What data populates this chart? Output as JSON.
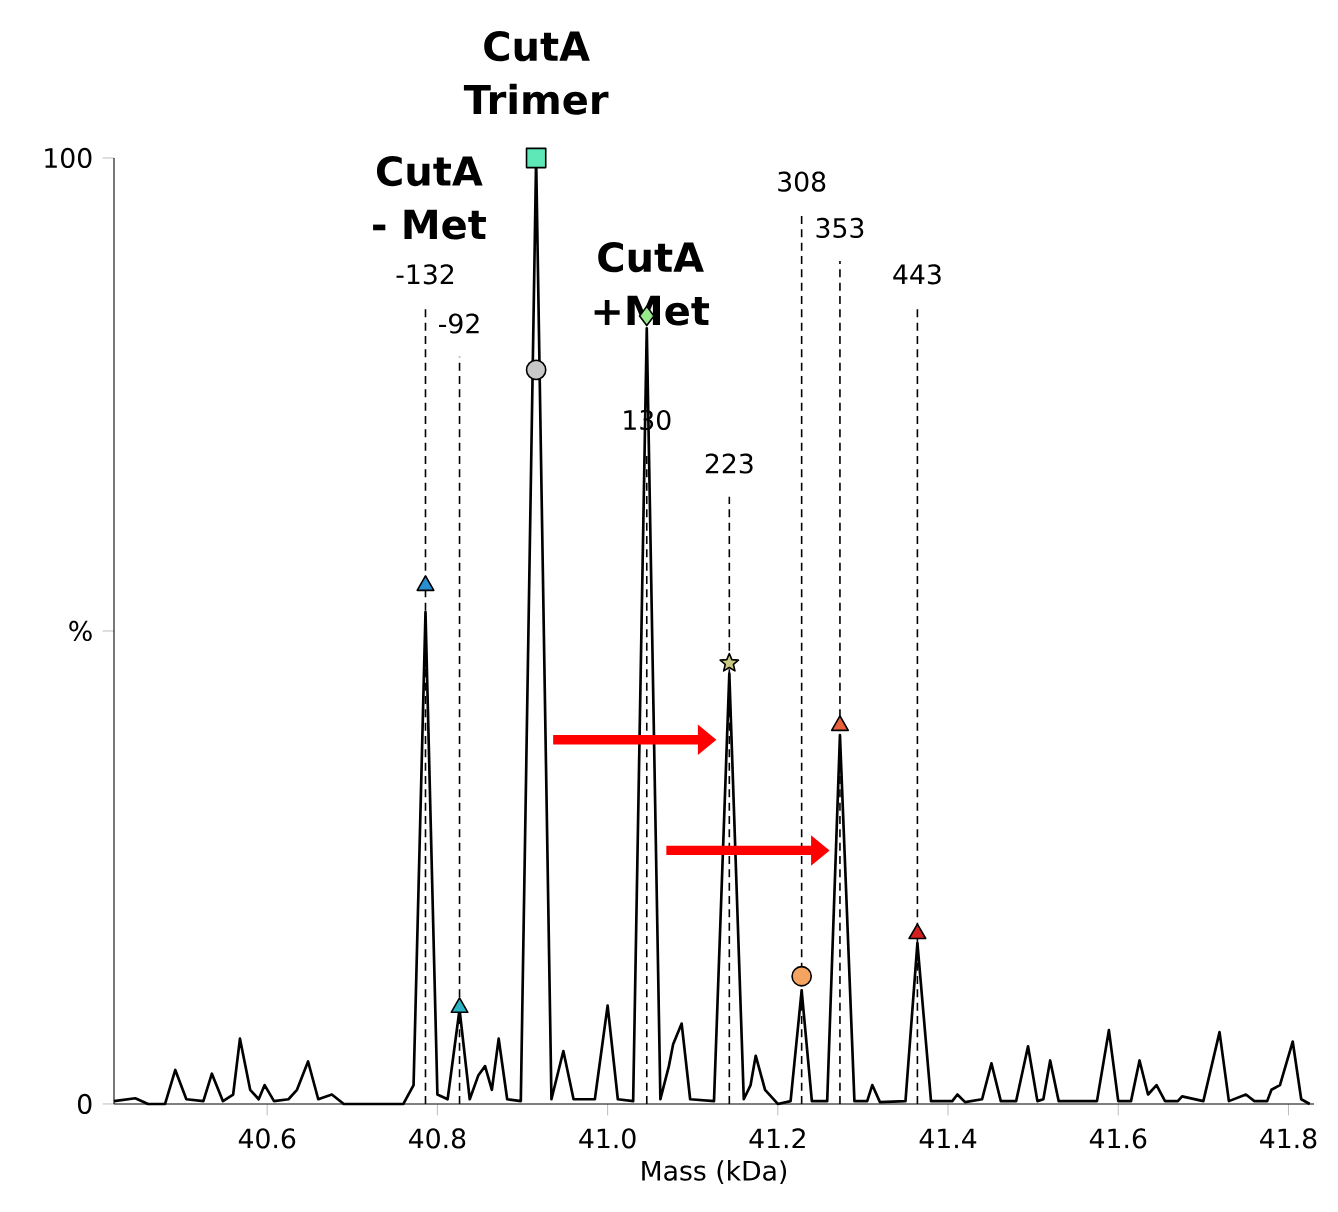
{
  "chart_data": {
    "type": "line",
    "xlabel": "Mass (kDa)",
    "xlim": [
      40.42,
      41.83
    ],
    "ylim": [
      0,
      100
    ],
    "xticks": [
      40.6,
      40.8,
      {
        "value": 41.0,
        "label": "41.0"
      },
      41.2,
      41.4,
      41.6,
      41.8
    ],
    "yticks": [
      0,
      {
        "value": 50,
        "label": "%"
      },
      100
    ],
    "series": [
      {
        "color": "#000000",
        "marker": "none",
        "line_style": "solid",
        "x": [
          40.42,
          40.445,
          40.46,
          40.48,
          40.492,
          40.505,
          40.525,
          40.535,
          40.548,
          40.56,
          40.568,
          40.58,
          40.59,
          40.597,
          40.608,
          40.625,
          40.635,
          40.648,
          40.66,
          40.676,
          40.69,
          40.76,
          40.772,
          40.786,
          40.8,
          40.812,
          40.826,
          40.838,
          40.848,
          40.856,
          40.864,
          40.872,
          40.882,
          40.898,
          40.916,
          40.934,
          40.948,
          40.96,
          40.985,
          41.0,
          41.012,
          41.03,
          41.046,
          41.062,
          41.072,
          41.077,
          41.087,
          41.097,
          41.125,
          41.143,
          41.16,
          41.168,
          41.174,
          41.185,
          41.2,
          41.215,
          41.228,
          41.24,
          41.258,
          41.273,
          41.29,
          41.305,
          41.311,
          41.32,
          41.35,
          41.364,
          41.38,
          41.405,
          41.411,
          41.42,
          41.44,
          41.451,
          41.462,
          41.48,
          41.494,
          41.505,
          41.512,
          41.52,
          41.53,
          41.575,
          41.589,
          41.6,
          41.615,
          41.625,
          41.635,
          41.645,
          41.655,
          41.67,
          41.675,
          41.7,
          41.719,
          41.73,
          41.75,
          41.76,
          41.775,
          41.78,
          41.79,
          41.805,
          41.815,
          41.825
        ],
        "values": [
          0.3,
          0.6,
          0,
          0,
          3.6,
          0.5,
          0.3,
          3.2,
          0.3,
          1,
          6.9,
          1.5,
          0.5,
          2,
          0.3,
          0.5,
          1.5,
          4.5,
          0.5,
          1,
          0,
          0,
          2,
          52,
          1,
          0.5,
          10,
          0.5,
          3,
          4,
          1.5,
          6.9,
          0.5,
          0.3,
          100,
          0.5,
          5.6,
          0.5,
          0.5,
          10.4,
          0.5,
          0.3,
          82,
          0.5,
          4,
          6.3,
          8.5,
          0.5,
          0.3,
          45.5,
          0.5,
          2,
          5.1,
          1.5,
          0,
          0.3,
          12,
          0.3,
          0.3,
          39,
          0.3,
          0.3,
          2,
          0.2,
          0.3,
          17,
          0.3,
          0.3,
          1,
          0.2,
          0.5,
          4.3,
          0.3,
          0.3,
          6.1,
          0.3,
          0.5,
          4.6,
          0.3,
          0.3,
          7.8,
          0.3,
          0.3,
          4.6,
          1,
          2,
          0.3,
          0.3,
          0.8,
          0.3,
          7.6,
          0.3,
          1,
          0.3,
          0.3,
          1.5,
          2,
          6.6,
          0.5,
          0
        ]
      },
      {
        "type": "scatter",
        "color": "#2a8fd0",
        "marker": "triangle",
        "x": [
          40.786
        ],
        "values": [
          54.8
        ]
      },
      {
        "type": "scatter",
        "color": "#2bb5c5",
        "marker": "triangle",
        "x": [
          40.826
        ],
        "values": [
          10.2
        ]
      },
      {
        "type": "scatter",
        "color": "#5ee8b8",
        "marker": "square",
        "x": [
          40.916
        ],
        "values": [
          100
        ]
      },
      {
        "type": "scatter",
        "color": "#c8c8c8",
        "marker": "circle",
        "x": [
          40.916
        ],
        "values": [
          77.6
        ]
      },
      {
        "type": "scatter",
        "color": "#98e88c",
        "marker": "diamond",
        "x": [
          41.046
        ],
        "values": [
          83.3
        ]
      },
      {
        "type": "scatter",
        "color": "#c8c880",
        "marker": "star",
        "x": [
          41.143
        ],
        "values": [
          46.6
        ]
      },
      {
        "type": "scatter",
        "color": "#f4a460",
        "marker": "circle",
        "x": [
          41.228
        ],
        "values": [
          13.5
        ]
      },
      {
        "type": "scatter",
        "color": "#e8603c",
        "marker": "triangle",
        "x": [
          41.273
        ],
        "values": [
          40
        ]
      },
      {
        "type": "scatter",
        "color": "#d62020",
        "marker": "triangle",
        "x": [
          41.364
        ],
        "values": [
          18
        ]
      }
    ],
    "ref_lines": [
      {
        "axis": "x",
        "value": 40.786,
        "line_style": "dashed",
        "color": "#000000"
      },
      {
        "axis": "x",
        "value": 40.826,
        "line_style": "dashed",
        "color": "#000000"
      },
      {
        "axis": "x",
        "value": 41.046,
        "line_style": "dashed",
        "color": "#000000"
      },
      {
        "axis": "x",
        "value": 41.143,
        "line_style": "dashed",
        "color": "#000000"
      },
      {
        "axis": "x",
        "value": 41.228,
        "line_style": "dashed",
        "color": "#000000"
      },
      {
        "axis": "x",
        "value": 41.273,
        "line_style": "dashed",
        "color": "#000000"
      },
      {
        "axis": "x",
        "value": 41.364,
        "line_style": "dashed",
        "color": "#000000"
      }
    ],
    "annotations": [
      "CutA - Met",
      "CutA Trimer",
      "CutA +Met",
      "-132",
      "-92",
      "130",
      "223",
      "308",
      "353",
      "443"
    ]
  }
}
